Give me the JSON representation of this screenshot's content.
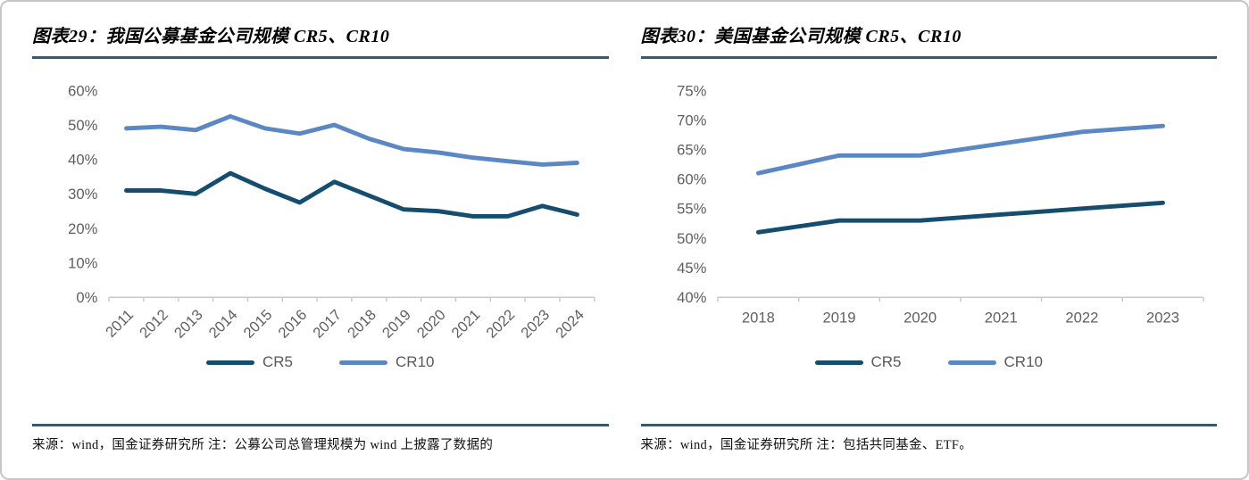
{
  "page": {
    "background": "#ffffff",
    "card_border_color": "#c6c6c6",
    "rule_color": "#255e7e",
    "axis_color": "#c8c8c8",
    "tick_text_color": "#5f5f5f",
    "legend_text_color": "#595959"
  },
  "panels": [
    {
      "title": "图表29：我国公募基金公司规模 CR5、CR10",
      "source": "来源：wind，国金证券研究所 注：公募公司总管理规模为 wind 上披露了数据的"
    },
    {
      "title": "图表30：美国基金公司规模 CR5、CR10",
      "source": "来源：wind，国金证券研究所 注：包括共同基金、ETF。"
    }
  ],
  "chart_data": [
    {
      "type": "line",
      "title": "图表29：我国公募基金公司规模 CR5、CR10",
      "categories": [
        "2011",
        "2012",
        "2013",
        "2014",
        "2015",
        "2016",
        "2017",
        "2018",
        "2019",
        "2020",
        "2021",
        "2022",
        "2023",
        "2024"
      ],
      "series": [
        {
          "name": "CR5",
          "color": "#154d6e",
          "values": [
            31,
            31,
            30,
            36,
            31.5,
            27.5,
            33.5,
            29.5,
            25.5,
            25,
            23.5,
            23.5,
            26.5,
            24
          ]
        },
        {
          "name": "CR10",
          "color": "#5b88c4",
          "values": [
            49,
            49.5,
            48.5,
            52.5,
            49,
            47.5,
            50,
            46,
            43,
            42,
            40.5,
            39.5,
            38.5,
            39
          ]
        }
      ],
      "xlabel": "",
      "ylabel": "",
      "ylim": [
        0,
        60
      ],
      "ytick_step": 10,
      "y_unit": "%",
      "x_label_rotate": -45,
      "grid": false,
      "legend_position": "bottom"
    },
    {
      "type": "line",
      "title": "图表30：美国基金公司规模 CR5、CR10",
      "categories": [
        "2018",
        "2019",
        "2020",
        "2021",
        "2022",
        "2023"
      ],
      "series": [
        {
          "name": "CR5",
          "color": "#154d6e",
          "values": [
            51,
            53,
            53,
            54,
            55,
            56
          ]
        },
        {
          "name": "CR10",
          "color": "#5b88c4",
          "values": [
            61,
            64,
            64,
            66,
            68,
            69
          ]
        }
      ],
      "xlabel": "",
      "ylabel": "",
      "ylim": [
        40,
        75
      ],
      "ytick_step": 5,
      "y_unit": "%",
      "x_label_rotate": 0,
      "grid": false,
      "legend_position": "bottom"
    }
  ]
}
